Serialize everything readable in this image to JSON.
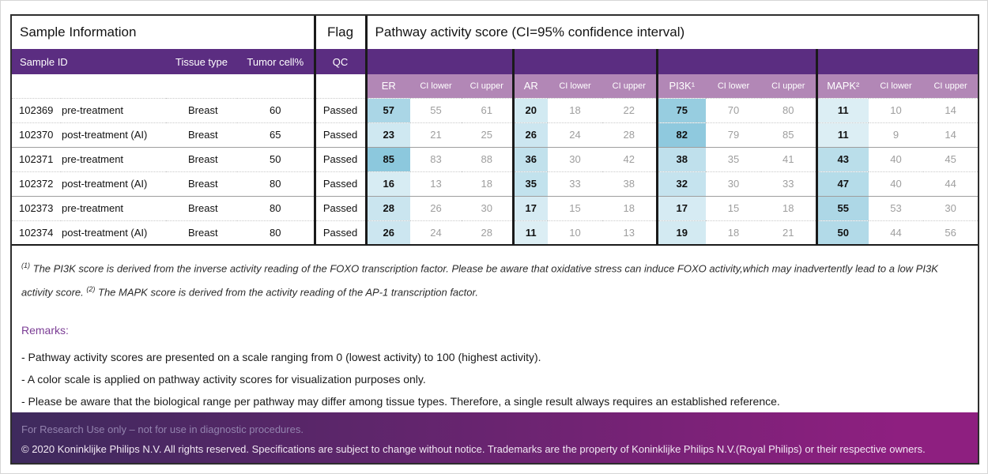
{
  "table": {
    "section_headers": {
      "sample_info": "Sample Information",
      "flag": "Flag",
      "pathway": "Pathway activity score (CI=95% confidence interval)"
    },
    "columns": {
      "sample_id": "Sample ID",
      "tissue_type": "Tissue type",
      "tumor_cell": "Tumor cell%",
      "qc": "QC",
      "ci_lower": "CI lower",
      "ci_upper": "CI upper"
    },
    "groups": [
      {
        "label": "ER"
      },
      {
        "label": "AR"
      },
      {
        "label": "PI3K¹"
      },
      {
        "label": "MAPK²"
      }
    ],
    "rows": [
      {
        "id": "102369",
        "treatment": "pre-treatment",
        "tissue": "Breast",
        "tumor": "60",
        "qc": "Passed",
        "values": [
          [
            57,
            55,
            61
          ],
          [
            20,
            18,
            22
          ],
          [
            75,
            70,
            80
          ],
          [
            11,
            10,
            14
          ]
        ]
      },
      {
        "id": "102370",
        "treatment": "post-treatment (AI)",
        "tissue": "Breast",
        "tumor": "65",
        "qc": "Passed",
        "values": [
          [
            23,
            21,
            25
          ],
          [
            26,
            24,
            28
          ],
          [
            82,
            79,
            85
          ],
          [
            11,
            9,
            14
          ]
        ]
      },
      {
        "id": "102371",
        "treatment": "pre-treatment",
        "tissue": "Breast",
        "tumor": "50",
        "qc": "Passed",
        "values": [
          [
            85,
            83,
            88
          ],
          [
            36,
            30,
            42
          ],
          [
            38,
            35,
            41
          ],
          [
            43,
            40,
            45
          ]
        ]
      },
      {
        "id": "102372",
        "treatment": "post-treatment (AI)",
        "tissue": "Breast",
        "tumor": "80",
        "qc": "Passed",
        "values": [
          [
            16,
            13,
            18
          ],
          [
            35,
            33,
            38
          ],
          [
            32,
            30,
            33
          ],
          [
            47,
            40,
            44
          ]
        ]
      },
      {
        "id": "102373",
        "treatment": "pre-treatment",
        "tissue": "Breast",
        "tumor": "80",
        "qc": "Passed",
        "values": [
          [
            28,
            26,
            30
          ],
          [
            17,
            15,
            18
          ],
          [
            17,
            15,
            18
          ],
          [
            55,
            53,
            30
          ]
        ]
      },
      {
        "id": "102374",
        "treatment": "post-treatment (AI)",
        "tissue": "Breast",
        "tumor": "80",
        "qc": "Passed",
        "values": [
          [
            26,
            24,
            28
          ],
          [
            11,
            10,
            13
          ],
          [
            19,
            18,
            21
          ],
          [
            50,
            44,
            56
          ]
        ]
      }
    ]
  },
  "footnotes": [
    {
      "marker": "(1)",
      "text": "The PI3K score is derived from the inverse activity reading of the FOXO transcription factor. Please be aware that oxidative stress can induce FOXO activity,which may inadvertently lead to a low PI3K activity score."
    },
    {
      "marker": "(2)",
      "text": "The MAPK score is derived from the activity reading of the AP-1 transcription factor."
    }
  ],
  "remarks": {
    "heading": "Remarks:",
    "items": [
      "- Pathway activity scores are presented on a scale ranging from 0 (lowest activity) to 100 (highest activity).",
      "- A color scale is applied on pathway activity scores for visualization purposes only.",
      "- Please be aware that the biological range per pathway may differ among tissue types. Therefore, a single result always requires an established reference."
    ]
  },
  "footer": {
    "line1": "For Research Use only – not for use in diagnostic procedures.",
    "line2": "© 2020 Koninklijke Philips N.V. All rights reserved. Specifications are subject to change without notice. Trademarks are the property of Koninklijke Philips N.V.(Royal Philips) or their respective owners."
  },
  "colors": {
    "header_purple": "#5b2d81",
    "subheader_mauve": "#b287b6",
    "score_scale_low": "#e8f4f8",
    "score_scale_high": "#7cc0d8",
    "footer_gradient_start": "#3e2a5d",
    "footer_gradient_end": "#8e1f80",
    "remarks_purple": "#7b3d95"
  }
}
